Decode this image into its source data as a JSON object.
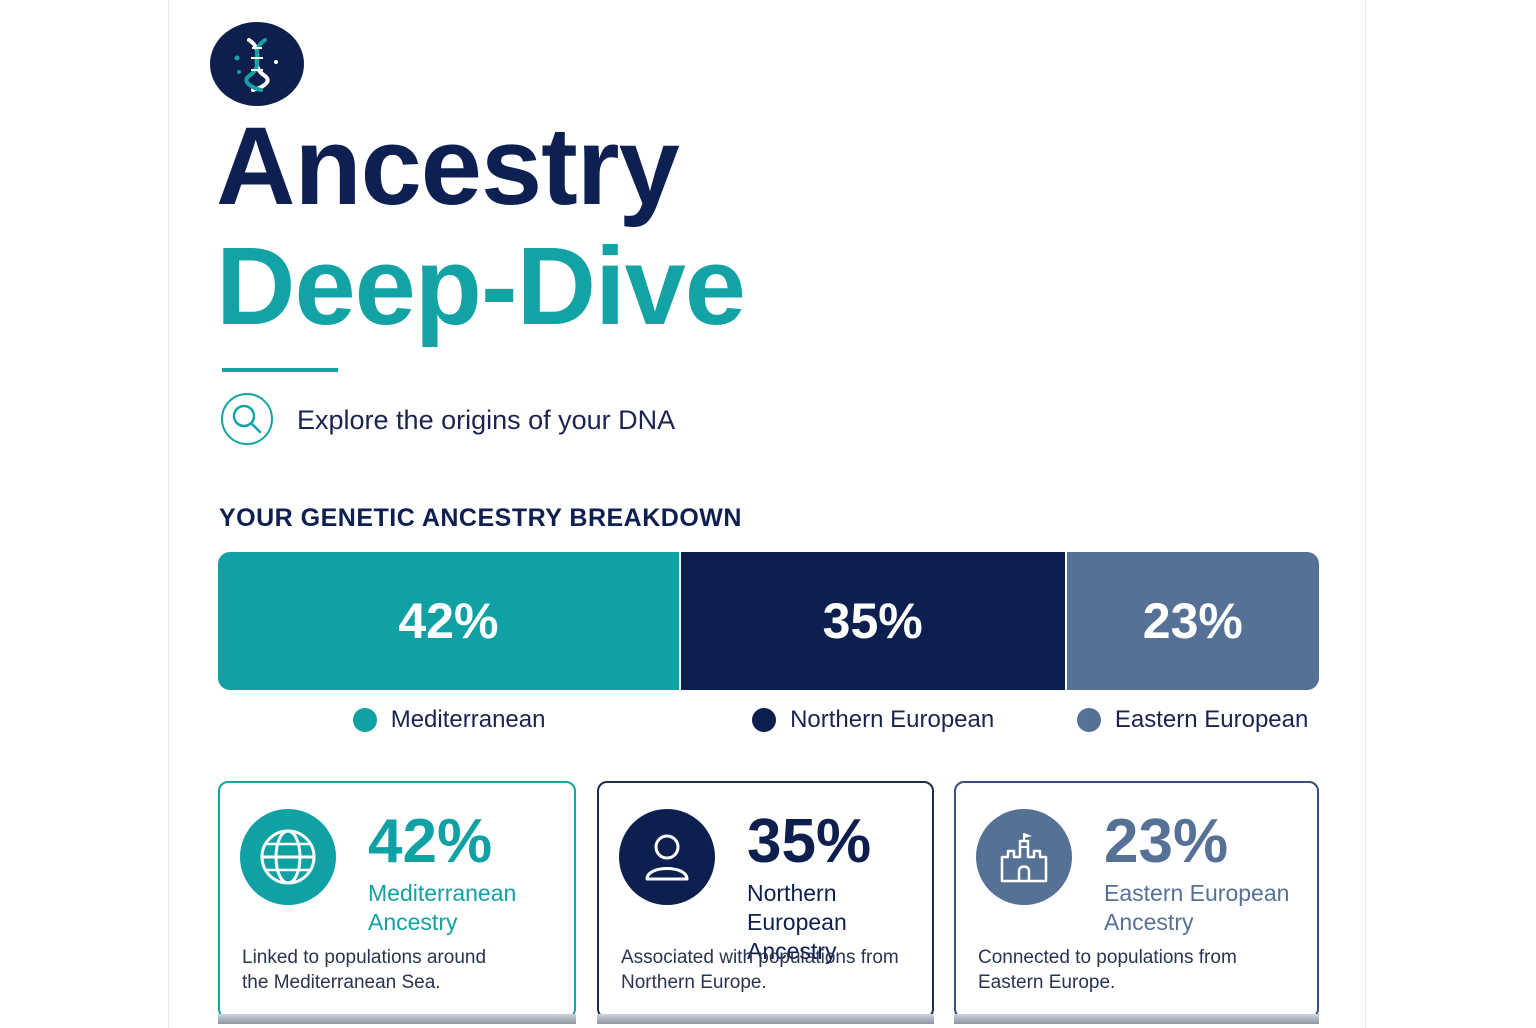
{
  "header": {
    "logo_icon": "dna-icon",
    "title_line1": "Ancestry",
    "title_line2": "Deep-Dive",
    "search_icon": "search-icon",
    "subtitle": "Explore the origins of your DNA"
  },
  "breakdown": {
    "heading": "YOUR GENETIC ANCESTRY BREAKDOWN",
    "segments": [
      {
        "value": 42,
        "label": "42%",
        "legend": "Mediterranean",
        "color": "#0fa1a3"
      },
      {
        "value": 35,
        "label": "35%",
        "legend": "Northern European",
        "color": "#0c1f4f"
      },
      {
        "value": 23,
        "label": "23%",
        "legend": "Eastern European",
        "color": "#557196"
      }
    ]
  },
  "cards": [
    {
      "icon": "globe-icon",
      "pct": "42%",
      "name": "Mediterranean Ancestry",
      "desc": "Linked to populations around the Mediterranean Sea.",
      "color": "#0fa1a3",
      "border": "#15a6a7"
    },
    {
      "icon": "person-icon",
      "pct": "35%",
      "name": "Northern European Ancestry",
      "desc": "Associated with populations from Northern Europe.",
      "color": "#0c1f4f",
      "border": "#1f2b55"
    },
    {
      "icon": "castle-icon",
      "pct": "23%",
      "name": "Eastern European Ancestry",
      "desc": "Connected to populations from Eastern Europe.",
      "color": "#557196",
      "border": "#3b4f7d"
    }
  ]
}
